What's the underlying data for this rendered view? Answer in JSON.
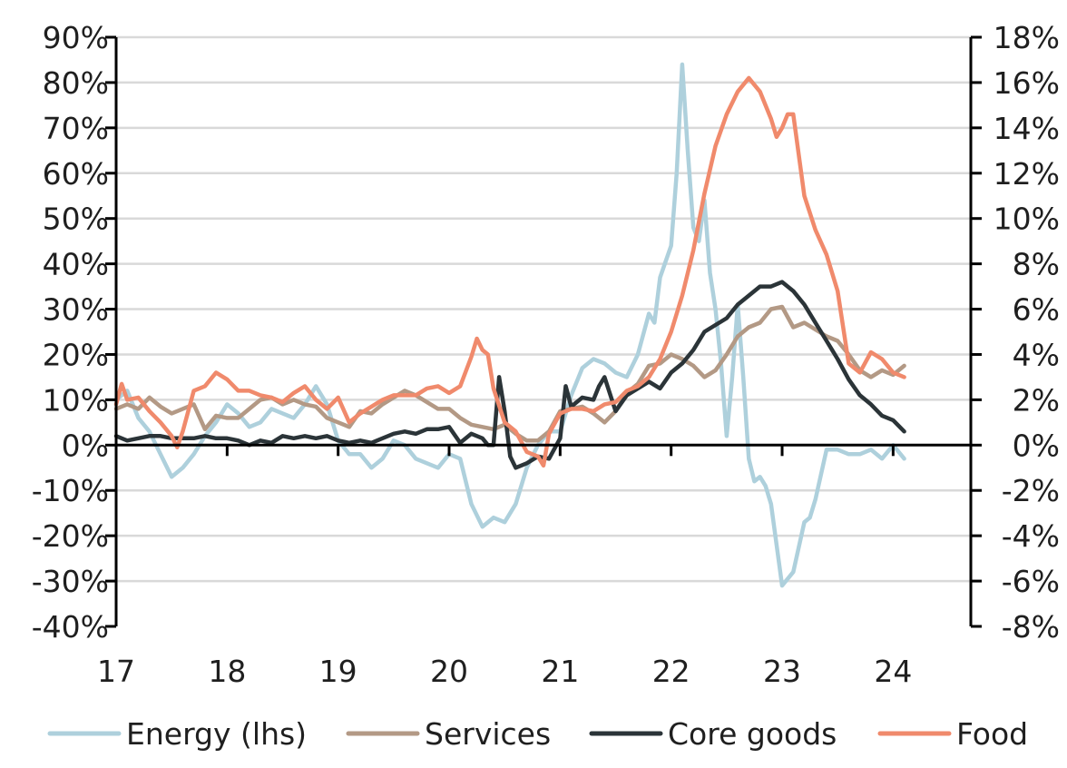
{
  "chart_data": {
    "type": "line",
    "title": "",
    "xlabel": "",
    "ylabel": "",
    "grid": "horizontal",
    "legend_position": "bottom",
    "x_ticks": [
      17,
      18,
      19,
      20,
      21,
      22,
      23,
      24
    ],
    "x_tick_labels": [
      "17",
      "18",
      "19",
      "20",
      "21",
      "22",
      "23",
      "24"
    ],
    "xlim": [
      17,
      24.7
    ],
    "left_axis": {
      "ylim": [
        -40,
        90
      ],
      "ticks": [
        -40,
        -30,
        -20,
        -10,
        0,
        10,
        20,
        30,
        40,
        50,
        60,
        70,
        80,
        90
      ],
      "tick_labels": [
        "-40%",
        "-30%",
        "-20%",
        "-10%",
        "0%",
        "10%",
        "20%",
        "30%",
        "40%",
        "50%",
        "60%",
        "70%",
        "80%",
        "90%"
      ]
    },
    "right_axis": {
      "ylim": [
        -8,
        18
      ],
      "ticks": [
        -8,
        -6,
        -4,
        -2,
        0,
        2,
        4,
        6,
        8,
        10,
        12,
        14,
        16,
        18
      ],
      "tick_labels": [
        "-8%",
        "-6%",
        "-4%",
        "-2%",
        "0%",
        "2%",
        "4%",
        "6%",
        "8%",
        "10%",
        "12%",
        "14%",
        "16%",
        "18%"
      ]
    },
    "series": [
      {
        "name": "Energy (lhs)",
        "axis": "left",
        "color": "#aed0dc",
        "x": [
          17.0,
          17.1,
          17.2,
          17.3,
          17.4,
          17.5,
          17.6,
          17.7,
          17.8,
          17.9,
          18.0,
          18.1,
          18.2,
          18.3,
          18.4,
          18.5,
          18.6,
          18.7,
          18.8,
          18.9,
          19.0,
          19.1,
          19.2,
          19.3,
          19.4,
          19.5,
          19.6,
          19.7,
          19.8,
          19.9,
          20.0,
          20.1,
          20.2,
          20.3,
          20.4,
          20.5,
          20.6,
          20.7,
          20.8,
          20.9,
          21.0,
          21.1,
          21.2,
          21.3,
          21.4,
          21.5,
          21.6,
          21.7,
          21.8,
          21.85,
          21.9,
          22.0,
          22.05,
          22.1,
          22.15,
          22.2,
          22.25,
          22.3,
          22.35,
          22.4,
          22.45,
          22.5,
          22.55,
          22.6,
          22.65,
          22.7,
          22.75,
          22.8,
          22.85,
          22.9,
          23.0,
          23.1,
          23.2,
          23.25,
          23.3,
          23.4,
          23.5,
          23.6,
          23.7,
          23.8,
          23.9,
          24.0,
          24.1
        ],
        "values": [
          10,
          12,
          6,
          3,
          -2,
          -7,
          -5,
          -2,
          2,
          5,
          9,
          7,
          4,
          5,
          8,
          7,
          6,
          9,
          13,
          9,
          1,
          -2,
          -2,
          -5,
          -3,
          1,
          0,
          -3,
          -4,
          -5,
          -2,
          -3,
          -13,
          -18,
          -16,
          -17,
          -13,
          -5,
          0,
          3,
          3,
          11,
          17,
          19,
          18,
          16,
          15,
          20,
          29,
          27,
          37,
          44,
          60,
          84,
          65,
          48,
          45,
          54,
          38,
          30,
          18,
          2,
          15,
          31,
          15,
          -3,
          -8,
          -7,
          -9,
          -13,
          -31,
          -28,
          -17,
          -16,
          -12,
          -1,
          -1,
          -2,
          -2,
          -1,
          -3,
          0,
          -3
        ]
      },
      {
        "name": "Services",
        "axis": "right",
        "color": "#b39985",
        "x": [
          17.0,
          17.1,
          17.2,
          17.3,
          17.4,
          17.5,
          17.6,
          17.7,
          17.8,
          17.9,
          18.0,
          18.1,
          18.2,
          18.3,
          18.4,
          18.5,
          18.6,
          18.7,
          18.8,
          18.9,
          19.0,
          19.1,
          19.2,
          19.3,
          19.4,
          19.5,
          19.6,
          19.7,
          19.8,
          19.9,
          20.0,
          20.1,
          20.2,
          20.3,
          20.4,
          20.5,
          20.6,
          20.7,
          20.8,
          20.9,
          21.0,
          21.1,
          21.2,
          21.3,
          21.4,
          21.5,
          21.6,
          21.7,
          21.8,
          21.9,
          22.0,
          22.1,
          22.2,
          22.3,
          22.4,
          22.5,
          22.6,
          22.7,
          22.8,
          22.9,
          23.0,
          23.1,
          23.2,
          23.3,
          23.4,
          23.5,
          23.6,
          23.7,
          23.8,
          23.9,
          24.0,
          24.1
        ],
        "values": [
          1.6,
          1.8,
          1.6,
          2.1,
          1.7,
          1.4,
          1.6,
          1.8,
          0.7,
          1.3,
          1.2,
          1.2,
          1.6,
          2.0,
          2.1,
          1.8,
          2.0,
          1.8,
          1.7,
          1.2,
          1.0,
          0.8,
          1.5,
          1.4,
          1.8,
          2.1,
          2.4,
          2.2,
          1.9,
          1.6,
          1.6,
          1.2,
          0.9,
          0.8,
          0.7,
          0.9,
          0.5,
          0.2,
          0.2,
          0.6,
          1.5,
          1.6,
          1.7,
          1.4,
          1.0,
          1.5,
          2.3,
          2.7,
          3.5,
          3.6,
          4.0,
          3.8,
          3.5,
          3.0,
          3.3,
          4.0,
          4.8,
          5.2,
          5.4,
          6.0,
          6.1,
          5.2,
          5.4,
          5.1,
          4.8,
          4.6,
          4.0,
          3.3,
          3.0,
          3.3,
          3.1,
          3.5
        ]
      },
      {
        "name": "Core goods",
        "axis": "right",
        "color": "#2b3438",
        "x": [
          17.0,
          17.1,
          17.2,
          17.3,
          17.4,
          17.5,
          17.6,
          17.7,
          17.8,
          17.9,
          18.0,
          18.1,
          18.2,
          18.3,
          18.4,
          18.5,
          18.6,
          18.7,
          18.8,
          18.9,
          19.0,
          19.1,
          19.2,
          19.3,
          19.4,
          19.5,
          19.6,
          19.7,
          19.8,
          19.9,
          20.0,
          20.1,
          20.2,
          20.3,
          20.35,
          20.4,
          20.45,
          20.5,
          20.55,
          20.6,
          20.7,
          20.8,
          20.9,
          21.0,
          21.05,
          21.1,
          21.2,
          21.3,
          21.35,
          21.4,
          21.5,
          21.6,
          21.7,
          21.8,
          21.9,
          22.0,
          22.1,
          22.2,
          22.3,
          22.4,
          22.5,
          22.6,
          22.7,
          22.8,
          22.9,
          23.0,
          23.1,
          23.2,
          23.3,
          23.4,
          23.5,
          23.6,
          23.7,
          23.8,
          23.9,
          24.0,
          24.1
        ],
        "values": [
          0.4,
          0.2,
          0.3,
          0.4,
          0.4,
          0.3,
          0.3,
          0.3,
          0.4,
          0.3,
          0.3,
          0.2,
          0.0,
          0.2,
          0.1,
          0.4,
          0.3,
          0.4,
          0.3,
          0.4,
          0.2,
          0.1,
          0.2,
          0.1,
          0.3,
          0.5,
          0.6,
          0.5,
          0.7,
          0.7,
          0.8,
          0.1,
          0.5,
          0.3,
          0.0,
          0.0,
          3.0,
          1.5,
          -0.5,
          -1.0,
          -0.8,
          -0.5,
          -0.6,
          0.3,
          2.6,
          1.7,
          2.1,
          2.0,
          2.6,
          3.0,
          1.5,
          2.2,
          2.5,
          2.8,
          2.5,
          3.2,
          3.6,
          4.2,
          5.0,
          5.3,
          5.6,
          6.2,
          6.6,
          7.0,
          7.0,
          7.2,
          6.8,
          6.2,
          5.4,
          4.6,
          3.8,
          2.9,
          2.2,
          1.8,
          1.3,
          1.1,
          0.6
        ]
      },
      {
        "name": "Food",
        "axis": "right",
        "color": "#f08a6c",
        "x": [
          17.0,
          17.05,
          17.1,
          17.2,
          17.3,
          17.4,
          17.5,
          17.55,
          17.6,
          17.7,
          17.8,
          17.9,
          18.0,
          18.1,
          18.2,
          18.3,
          18.4,
          18.5,
          18.6,
          18.7,
          18.8,
          18.9,
          19.0,
          19.1,
          19.2,
          19.3,
          19.4,
          19.5,
          19.6,
          19.7,
          19.8,
          19.9,
          20.0,
          20.1,
          20.2,
          20.25,
          20.3,
          20.35,
          20.4,
          20.5,
          20.6,
          20.7,
          20.8,
          20.85,
          20.9,
          21.0,
          21.1,
          21.2,
          21.3,
          21.4,
          21.5,
          21.6,
          21.7,
          21.8,
          21.9,
          22.0,
          22.1,
          22.2,
          22.3,
          22.4,
          22.5,
          22.6,
          22.7,
          22.8,
          22.9,
          22.95,
          23.0,
          23.05,
          23.1,
          23.2,
          23.3,
          23.4,
          23.5,
          23.6,
          23.7,
          23.8,
          23.9,
          24.0,
          24.1
        ],
        "values": [
          1.8,
          2.7,
          2.0,
          2.1,
          1.5,
          1.0,
          0.4,
          -0.1,
          0.6,
          2.4,
          2.6,
          3.2,
          2.9,
          2.4,
          2.4,
          2.2,
          2.1,
          1.9,
          2.3,
          2.6,
          2.0,
          1.6,
          2.1,
          1.0,
          1.4,
          1.7,
          2.0,
          2.2,
          2.2,
          2.2,
          2.5,
          2.6,
          2.3,
          2.6,
          3.9,
          4.7,
          4.2,
          4.0,
          2.5,
          1.0,
          0.6,
          -0.3,
          -0.5,
          -0.9,
          0.5,
          1.4,
          1.6,
          1.6,
          1.5,
          1.8,
          1.9,
          2.4,
          2.6,
          3.0,
          3.8,
          5.0,
          6.6,
          8.6,
          11.1,
          13.2,
          14.6,
          15.6,
          16.2,
          15.6,
          14.4,
          13.6,
          14.0,
          14.6,
          14.6,
          11.0,
          9.5,
          8.4,
          6.8,
          3.6,
          3.2,
          4.1,
          3.8,
          3.2,
          3.0
        ]
      }
    ]
  }
}
